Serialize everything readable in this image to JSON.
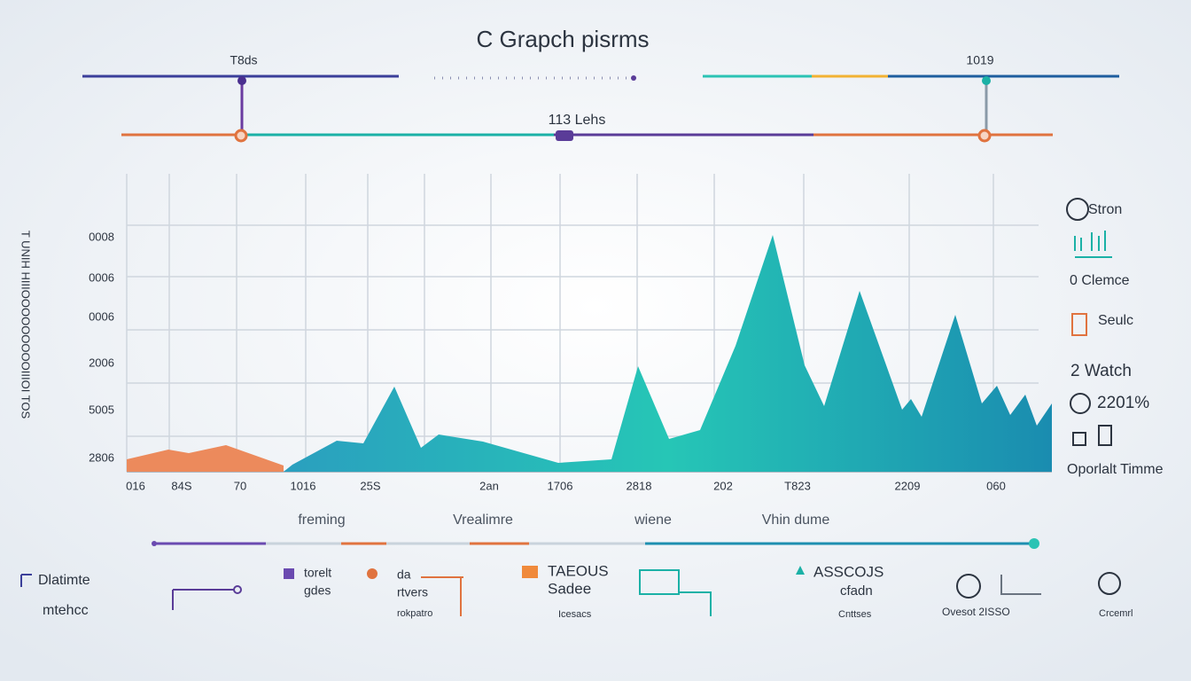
{
  "header": {
    "title": "C Grapch pisrms"
  },
  "timeline": {
    "labels": [
      "T8ds",
      "1019",
      "113 Lehs"
    ]
  },
  "axis": {
    "side_label": "T UNIH HIIIOOOOOOOOOIIIOI TOS",
    "y_labels": [
      "0008",
      "0006",
      "0006",
      "2006",
      "5005",
      "2806"
    ],
    "x_labels": [
      "016",
      "84S",
      "70",
      "1016",
      "25S",
      "2an",
      "1706",
      "2818",
      "202",
      "T823",
      "2209",
      "060"
    ]
  },
  "legend": {
    "items": [
      "Stron",
      "0  Clemce",
      "Seulc",
      "2  Watch",
      "2201%",
      "Oporlalt Timme"
    ]
  },
  "captions": [
    "freming",
    "Vrealimre",
    "wiene",
    "Vhin dume"
  ],
  "footer": {
    "items": [
      "Dlatimte",
      "mtehcc",
      "torelt",
      "gdes",
      "da",
      "rtvers",
      "rokpatro",
      "TAEOUS",
      "Sadee",
      "Icesacs",
      "ASSCOJS",
      "cfadn",
      "Cnttses",
      "Ovesot 2ISSO",
      "Crcemrl"
    ]
  }
}
